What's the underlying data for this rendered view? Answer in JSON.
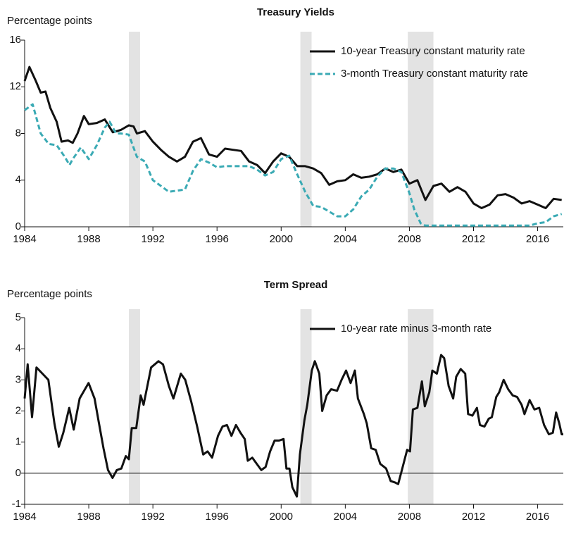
{
  "chart_data": [
    {
      "type": "line",
      "title": "Treasury Yields",
      "y_label": "Percentage points",
      "xlim": [
        1984,
        2017.6
      ],
      "xticks": [
        1984,
        1988,
        1992,
        1996,
        2000,
        2004,
        2008,
        2012,
        2016
      ],
      "ylim": [
        0,
        16
      ],
      "yticks": [
        0,
        4,
        8,
        12,
        16
      ],
      "legend": "upper right",
      "shaded_periods": [
        [
          1990.5,
          1991.2
        ],
        [
          2001.2,
          2001.9
        ],
        [
          2007.9,
          2009.5
        ]
      ],
      "shade_color": "#e3e3e3",
      "series": [
        {
          "name": "10-year Treasury constant maturity rate",
          "color": "#111111",
          "style": "solid",
          "x": [
            1984.0,
            1984.3,
            1984.7,
            1985.0,
            1985.3,
            1985.6,
            1986.0,
            1986.3,
            1986.7,
            1987.0,
            1987.3,
            1987.7,
            1988.0,
            1988.5,
            1989.0,
            1989.5,
            1990.0,
            1990.5,
            1990.8,
            1991.0,
            1991.5,
            1992.0,
            1992.5,
            1993.0,
            1993.5,
            1994.0,
            1994.5,
            1995.0,
            1995.5,
            1996.0,
            1996.5,
            1997.0,
            1997.5,
            1998.0,
            1998.5,
            1999.0,
            1999.5,
            2000.0,
            2000.5,
            2001.0,
            2001.5,
            2002.0,
            2002.5,
            2003.0,
            2003.5,
            2004.0,
            2004.5,
            2005.0,
            2005.5,
            2006.0,
            2006.5,
            2007.0,
            2007.5,
            2008.0,
            2008.5,
            2009.0,
            2009.5,
            2010.0,
            2010.5,
            2011.0,
            2011.5,
            2012.0,
            2012.5,
            2013.0,
            2013.5,
            2014.0,
            2014.5,
            2015.0,
            2015.5,
            2016.0,
            2016.5,
            2017.0,
            2017.5
          ],
          "values": [
            12.5,
            13.7,
            12.5,
            11.5,
            11.6,
            10.2,
            9.0,
            7.3,
            7.4,
            7.2,
            8.0,
            9.5,
            8.8,
            8.9,
            9.2,
            8.1,
            8.3,
            8.7,
            8.6,
            8.0,
            8.2,
            7.3,
            6.6,
            6.0,
            5.6,
            6.0,
            7.3,
            7.6,
            6.2,
            6.0,
            6.7,
            6.6,
            6.5,
            5.6,
            5.3,
            4.6,
            5.6,
            6.3,
            6.0,
            5.2,
            5.2,
            5.0,
            4.6,
            3.6,
            3.9,
            4.0,
            4.5,
            4.2,
            4.3,
            4.5,
            5.0,
            4.7,
            4.9,
            3.7,
            4.0,
            2.3,
            3.5,
            3.7,
            3.0,
            3.4,
            3.0,
            2.0,
            1.6,
            1.9,
            2.7,
            2.8,
            2.5,
            2.0,
            2.2,
            1.9,
            1.6,
            2.4,
            2.3
          ]
        },
        {
          "name": "3-month Treasury constant maturity rate",
          "color": "#3aaab4",
          "style": "dashed",
          "x": [
            1984.0,
            1984.5,
            1985.0,
            1985.5,
            1986.0,
            1986.5,
            1986.8,
            1987.0,
            1987.5,
            1988.0,
            1988.5,
            1989.0,
            1989.3,
            1989.7,
            1990.0,
            1990.5,
            1991.0,
            1991.5,
            1992.0,
            1992.5,
            1993.0,
            1993.5,
            1994.0,
            1994.5,
            1995.0,
            1995.5,
            1996.0,
            1996.5,
            1997.0,
            1997.5,
            1998.0,
            1998.5,
            1999.0,
            1999.5,
            2000.0,
            2000.5,
            2001.0,
            2001.5,
            2002.0,
            2002.5,
            2003.0,
            2003.5,
            2004.0,
            2004.5,
            2005.0,
            2005.5,
            2006.0,
            2006.5,
            2007.0,
            2007.5,
            2008.0,
            2008.3,
            2008.7,
            2009.0,
            2010.0,
            2011.0,
            2012.0,
            2013.0,
            2014.0,
            2015.0,
            2015.5,
            2016.0,
            2016.5,
            2017.0,
            2017.5
          ],
          "values": [
            10.0,
            10.5,
            8.0,
            7.1,
            7.0,
            6.0,
            5.3,
            5.8,
            6.8,
            5.8,
            7.0,
            8.5,
            9.0,
            8.0,
            8.0,
            7.9,
            6.0,
            5.6,
            4.0,
            3.5,
            3.0,
            3.1,
            3.2,
            4.8,
            5.8,
            5.5,
            5.1,
            5.2,
            5.2,
            5.2,
            5.2,
            4.9,
            4.4,
            4.7,
            5.8,
            6.1,
            4.5,
            3.0,
            1.8,
            1.7,
            1.3,
            0.9,
            0.9,
            1.5,
            2.6,
            3.2,
            4.3,
            5.0,
            5.0,
            4.7,
            2.9,
            1.5,
            0.3,
            0.1,
            0.1,
            0.1,
            0.1,
            0.1,
            0.1,
            0.1,
            0.1,
            0.3,
            0.4,
            0.9,
            1.1
          ]
        }
      ]
    },
    {
      "type": "line",
      "title": "Term Spread",
      "y_label": "Percentage points",
      "xlim": [
        1984,
        2017.6
      ],
      "xticks": [
        1984,
        1988,
        1992,
        1996,
        2000,
        2004,
        2008,
        2012,
        2016
      ],
      "ylim": [
        -1,
        5
      ],
      "yticks": [
        -1,
        0,
        1,
        2,
        3,
        4,
        5
      ],
      "legend": "upper right",
      "shaded_periods": [
        [
          1990.5,
          1991.2
        ],
        [
          2001.2,
          2001.9
        ],
        [
          2007.9,
          2009.5
        ]
      ],
      "shade_color": "#e3e3e3",
      "series": [
        {
          "name": "10-year rate minus 3-month rate",
          "color": "#111111",
          "style": "solid",
          "x": [
            1984.0,
            1984.19,
            1984.46,
            1984.74,
            1985.11,
            1985.48,
            1985.86,
            1986.13,
            1986.41,
            1986.78,
            1987.06,
            1987.43,
            1987.99,
            1988.36,
            1988.64,
            1988.92,
            1989.2,
            1989.48,
            1989.75,
            1990.03,
            1990.31,
            1990.5,
            1990.68,
            1990.96,
            1991.24,
            1991.42,
            1991.89,
            1992.35,
            1992.63,
            1993.0,
            1993.28,
            1993.74,
            1994.02,
            1994.39,
            1994.76,
            1995.14,
            1995.41,
            1995.69,
            1996.06,
            1996.34,
            1996.62,
            1996.9,
            1997.18,
            1997.46,
            1997.73,
            1997.92,
            1998.2,
            1998.48,
            1998.76,
            1999.03,
            1999.31,
            1999.59,
            1999.87,
            2000.15,
            2000.33,
            2000.52,
            2000.7,
            2000.98,
            2001.17,
            2001.45,
            2001.63,
            2001.91,
            2002.1,
            2002.38,
            2002.56,
            2002.84,
            2003.12,
            2003.49,
            2003.77,
            2004.05,
            2004.33,
            2004.6,
            2004.79,
            2005.16,
            2005.34,
            2005.62,
            2005.9,
            2006.18,
            2006.55,
            2006.83,
            2007.11,
            2007.3,
            2007.58,
            2007.86,
            2008.04,
            2008.22,
            2008.5,
            2008.78,
            2008.96,
            2009.24,
            2009.43,
            2009.71,
            2009.98,
            2010.17,
            2010.45,
            2010.73,
            2010.92,
            2011.2,
            2011.48,
            2011.66,
            2011.93,
            2012.21,
            2012.4,
            2012.68,
            2012.95,
            2013.14,
            2013.42,
            2013.6,
            2013.88,
            2014.16,
            2014.44,
            2014.72,
            2015.0,
            2015.18,
            2015.5,
            2015.8,
            2016.1,
            2016.4,
            2016.7,
            2016.95,
            2017.15,
            2017.35,
            2017.5,
            2017.6
          ],
          "values": [
            2.4,
            3.5,
            1.8,
            3.4,
            3.2,
            3.0,
            1.6,
            0.85,
            1.3,
            2.1,
            1.4,
            2.4,
            2.9,
            2.4,
            1.6,
            0.8,
            0.1,
            -0.15,
            0.1,
            0.15,
            0.55,
            0.45,
            1.45,
            1.45,
            2.5,
            2.2,
            3.4,
            3.6,
            3.5,
            2.8,
            2.4,
            3.2,
            3.0,
            2.3,
            1.5,
            0.6,
            0.7,
            0.5,
            1.2,
            1.5,
            1.55,
            1.2,
            1.55,
            1.3,
            1.1,
            0.4,
            0.5,
            0.3,
            0.1,
            0.2,
            0.7,
            1.05,
            1.05,
            1.1,
            0.15,
            0.15,
            -0.45,
            -0.75,
            0.6,
            1.7,
            2.2,
            3.3,
            3.6,
            3.2,
            2.0,
            2.5,
            2.7,
            2.65,
            3.0,
            3.3,
            2.9,
            3.3,
            2.4,
            1.9,
            1.6,
            0.8,
            0.75,
            0.3,
            0.15,
            -0.25,
            -0.3,
            -0.35,
            0.2,
            0.75,
            0.7,
            2.05,
            2.1,
            2.95,
            2.15,
            2.6,
            3.3,
            3.2,
            3.8,
            3.7,
            2.8,
            2.4,
            3.1,
            3.35,
            3.2,
            1.9,
            1.85,
            2.1,
            1.55,
            1.5,
            1.75,
            1.8,
            2.45,
            2.6,
            3.0,
            2.7,
            2.5,
            2.45,
            2.2,
            1.9,
            2.35,
            2.05,
            2.1,
            1.55,
            1.25,
            1.3,
            1.95,
            1.6,
            1.25,
            1.25
          ]
        }
      ]
    }
  ]
}
